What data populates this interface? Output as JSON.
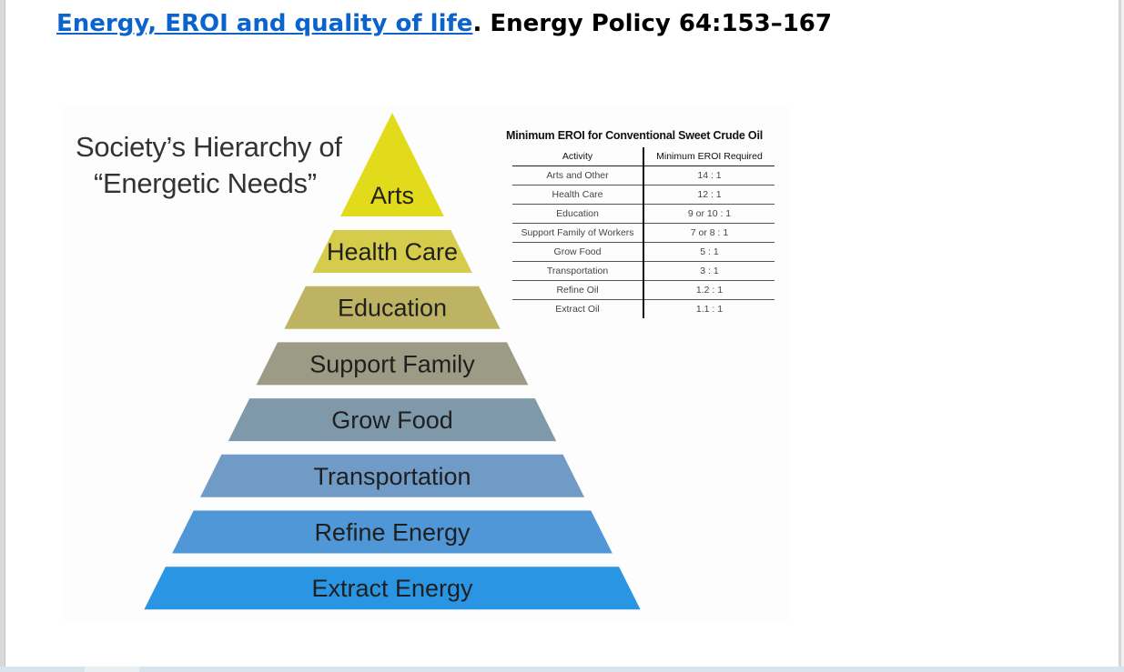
{
  "citation": {
    "link_text": "Energy, EROI and quality of life",
    "rest_text": ". Energy Policy 64:153–167"
  },
  "figure": {
    "title_line1": "Society’s Hierarchy of",
    "title_line2": "“Energetic Needs”",
    "pyramid": {
      "levels": [
        {
          "label": "Arts",
          "color": "#e2db1c"
        },
        {
          "label": "Health Care",
          "color": "#d4cc4a"
        },
        {
          "label": "Education",
          "color": "#bdb363"
        },
        {
          "label": "Support Family",
          "color": "#9c9c86"
        },
        {
          "label": "Grow Food",
          "color": "#7f99ab"
        },
        {
          "label": "Transportation",
          "color": "#6f9bc6"
        },
        {
          "label": "Refine Energy",
          "color": "#4f97d6"
        },
        {
          "label": "Extract Energy",
          "color": "#2a95e3"
        }
      ]
    },
    "table": {
      "caption": "Minimum EROI for Conventional Sweet Crude Oil",
      "headers": [
        "Activity",
        "Minimum EROI Required"
      ],
      "rows": [
        [
          "Arts and Other",
          "14 : 1"
        ],
        [
          "Health Care",
          "12 : 1"
        ],
        [
          "Education",
          "9 or 10 : 1"
        ],
        [
          "Support Family of Workers",
          "7 or 8 : 1"
        ],
        [
          "Grow Food",
          "5 : 1"
        ],
        [
          "Transportation",
          "3 : 1"
        ],
        [
          "Refine Oil",
          "1.2 : 1"
        ],
        [
          "Extract Oil",
          "1.1 : 1"
        ]
      ]
    }
  }
}
